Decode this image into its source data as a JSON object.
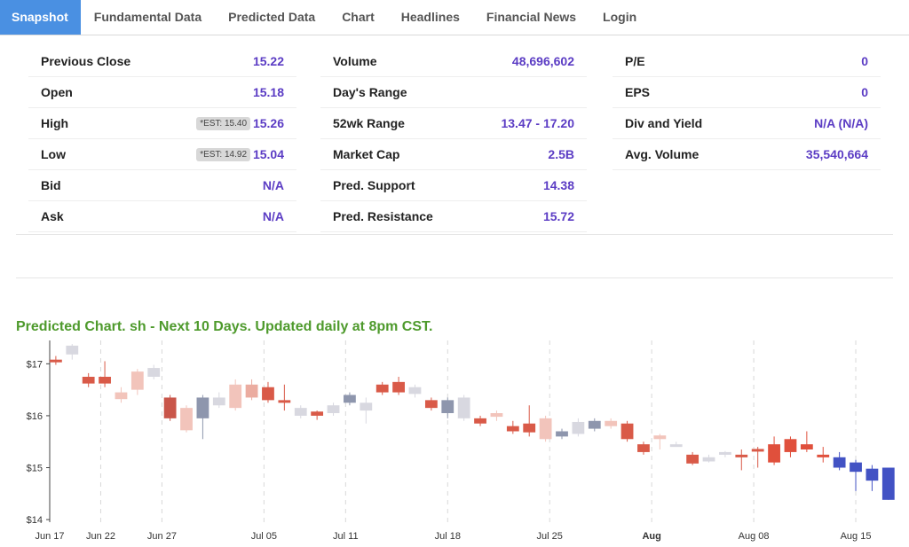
{
  "tabs": [
    {
      "label": "Snapshot",
      "active": true
    },
    {
      "label": "Fundamental Data"
    },
    {
      "label": "Predicted Data"
    },
    {
      "label": "Chart"
    },
    {
      "label": "Headlines"
    },
    {
      "label": "Financial News"
    },
    {
      "label": "Login"
    }
  ],
  "snapshot": {
    "col1": [
      {
        "label": "Previous Close",
        "value": "15.22"
      },
      {
        "label": "Open",
        "value": "15.18"
      },
      {
        "label": "High",
        "value": "15.26",
        "est": "*EST: 15.40"
      },
      {
        "label": "Low",
        "value": "15.04",
        "est": "*EST: 14.92"
      },
      {
        "label": "Bid",
        "value": "N/A"
      },
      {
        "label": "Ask",
        "value": "N/A"
      }
    ],
    "col2": [
      {
        "label": "Volume",
        "value": "48,696,602"
      },
      {
        "label": "Day's Range",
        "value": ""
      },
      {
        "label": "52wk Range",
        "value": "13.47 - 17.20"
      },
      {
        "label": "Market Cap",
        "value": "2.5B"
      },
      {
        "label": "Pred. Support",
        "value": "14.38"
      },
      {
        "label": "Pred. Resistance",
        "value": "15.72"
      }
    ],
    "col3": [
      {
        "label": "P/E",
        "value": "0"
      },
      {
        "label": "EPS",
        "value": "0"
      },
      {
        "label": "Div and Yield",
        "value": "N/A (N/A)"
      },
      {
        "label": "Avg. Volume",
        "value": "35,540,664"
      }
    ]
  },
  "chart_title": "Predicted Chart. sh - Next 10 Days. Updated daily at 8pm CST.",
  "chart_data": {
    "type": "candlestick",
    "y_ticks": [
      {
        "value": 17,
        "label": "$17"
      },
      {
        "value": 16,
        "label": "$16"
      },
      {
        "value": 15,
        "label": "$15"
      },
      {
        "value": 14,
        "label": "$14"
      }
    ],
    "ylim": [
      13.95,
      17.45
    ],
    "x_range": [
      0,
      41.5
    ],
    "x_ticks": [
      {
        "label": "Jun 17",
        "x": 0
      },
      {
        "label": "Jun 22",
        "x": 2.5
      },
      {
        "label": "Jun 27",
        "x": 5.5
      },
      {
        "label": "Jul 05",
        "x": 10.5
      },
      {
        "label": "Jul 11",
        "x": 14.5
      },
      {
        "label": "Jul 18",
        "x": 19.5
      },
      {
        "label": "Jul 25",
        "x": 24.5
      },
      {
        "label": "Aug",
        "x": 29.5,
        "bold": true
      },
      {
        "label": "Aug 08",
        "x": 34.5
      },
      {
        "label": "Aug 15",
        "x": 39.5
      }
    ],
    "gridlines_x": [
      2.5,
      5.5,
      10.5,
      14.5,
      19.5,
      24.5,
      29.5,
      34.5,
      39.5
    ],
    "candles": [
      {
        "o": 17.08,
        "c": 17.03,
        "h": 17.15,
        "l": 16.98,
        "color": "#d95a48"
      },
      {
        "o": 17.35,
        "c": 17.18,
        "h": 17.38,
        "l": 17.08,
        "color": "#d8d8e0"
      },
      {
        "o": 16.75,
        "c": 16.62,
        "h": 16.82,
        "l": 16.55,
        "color": "#d95a48"
      },
      {
        "o": 16.75,
        "c": 16.62,
        "h": 17.05,
        "l": 16.55,
        "color": "#d95a48"
      },
      {
        "o": 16.45,
        "c": 16.32,
        "h": 16.55,
        "l": 16.25,
        "color": "#f2c4bb"
      },
      {
        "o": 16.85,
        "c": 16.5,
        "h": 16.9,
        "l": 16.4,
        "color": "#f2c4bb"
      },
      {
        "o": 16.92,
        "c": 16.75,
        "h": 16.98,
        "l": 16.7,
        "color": "#d8d8e0"
      },
      {
        "o": 16.35,
        "c": 15.95,
        "h": 16.4,
        "l": 15.9,
        "color": "#c9564a"
      },
      {
        "o": 16.15,
        "c": 15.72,
        "h": 16.2,
        "l": 15.68,
        "color": "#f2c4bb"
      },
      {
        "o": 15.95,
        "c": 16.35,
        "h": 16.4,
        "l": 15.55,
        "color": "#8e96ad"
      },
      {
        "o": 16.2,
        "c": 16.35,
        "h": 16.45,
        "l": 16.15,
        "color": "#d8d8e0"
      },
      {
        "o": 16.15,
        "c": 16.6,
        "h": 16.7,
        "l": 16.1,
        "color": "#f2c4bb"
      },
      {
        "o": 16.35,
        "c": 16.6,
        "h": 16.7,
        "l": 16.3,
        "color": "#ebaca0"
      },
      {
        "o": 16.55,
        "c": 16.3,
        "h": 16.65,
        "l": 16.25,
        "color": "#d95a48"
      },
      {
        "o": 16.3,
        "c": 16.25,
        "h": 16.6,
        "l": 16.1,
        "color": "#d95a48"
      },
      {
        "o": 16.15,
        "c": 16.0,
        "h": 16.2,
        "l": 15.95,
        "color": "#d8d8e0"
      },
      {
        "o": 16.08,
        "c": 16.0,
        "h": 16.1,
        "l": 15.92,
        "color": "#d95a48"
      },
      {
        "o": 16.05,
        "c": 16.2,
        "h": 16.25,
        "l": 16.0,
        "color": "#d8d8e0"
      },
      {
        "o": 16.25,
        "c": 16.4,
        "h": 16.45,
        "l": 16.2,
        "color": "#8e96ad"
      },
      {
        "o": 16.25,
        "c": 16.1,
        "h": 16.35,
        "l": 15.85,
        "color": "#d8d8e0"
      },
      {
        "o": 16.45,
        "c": 16.6,
        "h": 16.65,
        "l": 16.4,
        "color": "#d95a48"
      },
      {
        "o": 16.65,
        "c": 16.45,
        "h": 16.75,
        "l": 16.4,
        "color": "#d95a48"
      },
      {
        "o": 16.55,
        "c": 16.42,
        "h": 16.6,
        "l": 16.35,
        "color": "#d8d8e0"
      },
      {
        "o": 16.3,
        "c": 16.15,
        "h": 16.35,
        "l": 16.1,
        "color": "#d95a48"
      },
      {
        "o": 16.05,
        "c": 16.3,
        "h": 16.35,
        "l": 15.95,
        "color": "#8e96ad"
      },
      {
        "o": 16.35,
        "c": 15.95,
        "h": 16.4,
        "l": 15.9,
        "color": "#d8d8e0"
      },
      {
        "o": 15.95,
        "c": 15.85,
        "h": 16.0,
        "l": 15.8,
        "color": "#d95a48"
      },
      {
        "o": 16.05,
        "c": 15.98,
        "h": 16.1,
        "l": 15.9,
        "color": "#f2c4bb"
      },
      {
        "o": 15.8,
        "c": 15.7,
        "h": 15.9,
        "l": 15.65,
        "color": "#d95a48"
      },
      {
        "o": 15.85,
        "c": 15.68,
        "h": 16.2,
        "l": 15.6,
        "color": "#d95a48"
      },
      {
        "o": 15.95,
        "c": 15.55,
        "h": 16.0,
        "l": 15.5,
        "color": "#f2c4bb"
      },
      {
        "o": 15.6,
        "c": 15.7,
        "h": 15.75,
        "l": 15.55,
        "color": "#8e96ad"
      },
      {
        "o": 15.65,
        "c": 15.88,
        "h": 15.95,
        "l": 15.6,
        "color": "#d8d8e0"
      },
      {
        "o": 15.75,
        "c": 15.9,
        "h": 15.95,
        "l": 15.7,
        "color": "#8e96ad"
      },
      {
        "o": 15.9,
        "c": 15.8,
        "h": 15.95,
        "l": 15.75,
        "color": "#f2c4bb"
      },
      {
        "o": 15.85,
        "c": 15.55,
        "h": 15.9,
        "l": 15.5,
        "color": "#d95a48"
      },
      {
        "o": 15.45,
        "c": 15.3,
        "h": 15.5,
        "l": 15.25,
        "color": "#d95a48"
      },
      {
        "o": 15.62,
        "c": 15.55,
        "h": 15.65,
        "l": 15.35,
        "color": "#f2c4bb"
      },
      {
        "o": 15.45,
        "c": 15.45,
        "h": 15.5,
        "l": 15.4,
        "color": "#d8d8e0"
      },
      {
        "o": 15.25,
        "c": 15.08,
        "h": 15.3,
        "l": 15.05,
        "color": "#d95a48"
      },
      {
        "o": 15.2,
        "c": 15.12,
        "h": 15.25,
        "l": 15.1,
        "color": "#d8d8e0"
      },
      {
        "o": 15.25,
        "c": 15.3,
        "h": 15.32,
        "l": 15.2,
        "color": "#d8d8e0"
      },
      {
        "o": 15.25,
        "c": 15.2,
        "h": 15.35,
        "l": 14.95,
        "color": "#d95a48"
      },
      {
        "o": 15.36,
        "c": 15.33,
        "h": 15.4,
        "l": 15.0,
        "color": "#d95a48"
      },
      {
        "o": 15.45,
        "c": 15.1,
        "h": 15.6,
        "l": 15.05,
        "color": "#e0503c"
      },
      {
        "o": 15.55,
        "c": 15.3,
        "h": 15.6,
        "l": 15.2,
        "color": "#e0503c"
      },
      {
        "o": 15.45,
        "c": 15.35,
        "h": 15.7,
        "l": 15.3,
        "color": "#e0503c"
      },
      {
        "o": 15.25,
        "c": 15.2,
        "h": 15.4,
        "l": 15.1,
        "color": "#e0503c"
      },
      {
        "o": 15.2,
        "c": 15.0,
        "h": 15.3,
        "l": 14.95,
        "color": "#4252c4"
      },
      {
        "o": 15.1,
        "c": 14.92,
        "h": 15.15,
        "l": 14.55,
        "color": "#4252c4"
      },
      {
        "o": 14.98,
        "c": 14.75,
        "h": 15.05,
        "l": 14.55,
        "color": "#4252c4"
      },
      {
        "o": 15.0,
        "c": 14.38,
        "h": 15.0,
        "l": 14.38,
        "color": "#4252c4"
      }
    ]
  }
}
